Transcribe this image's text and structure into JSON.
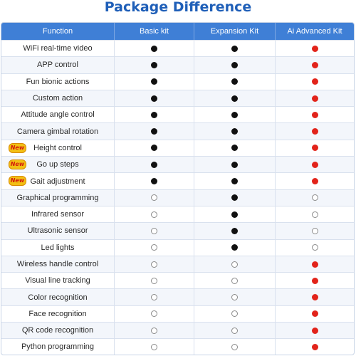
{
  "title": "Package Difference",
  "columns": [
    "Function",
    "Basic kit",
    "Expansion Kit",
    "Ai Advanced Kit"
  ],
  "new_badge": "New",
  "colors": {
    "accent": "#3f7fd6",
    "title": "#1f5fb8",
    "basic_dot": "#111111",
    "advanced_dot": "#e2231a"
  },
  "rows": [
    {
      "label": "WiFi real-time video",
      "new": false,
      "basic": "black",
      "expansion": "black",
      "advanced": "red"
    },
    {
      "label": "APP control",
      "new": false,
      "basic": "black",
      "expansion": "black",
      "advanced": "red"
    },
    {
      "label": "Fun bionic actions",
      "new": false,
      "basic": "black",
      "expansion": "black",
      "advanced": "red"
    },
    {
      "label": "Custom action",
      "new": false,
      "basic": "black",
      "expansion": "black",
      "advanced": "red"
    },
    {
      "label": "Attitude angle control",
      "new": false,
      "basic": "black",
      "expansion": "black",
      "advanced": "red"
    },
    {
      "label": "Camera gimbal rotation",
      "new": false,
      "basic": "black",
      "expansion": "black",
      "advanced": "red"
    },
    {
      "label": "Height control",
      "new": true,
      "basic": "black",
      "expansion": "black",
      "advanced": "red"
    },
    {
      "label": "Go up steps",
      "new": true,
      "basic": "black",
      "expansion": "black",
      "advanced": "red"
    },
    {
      "label": "Gait adjustment",
      "new": true,
      "basic": "black",
      "expansion": "black",
      "advanced": "red"
    },
    {
      "label": "Graphical programming",
      "new": false,
      "basic": "empty",
      "expansion": "black",
      "advanced": "empty"
    },
    {
      "label": "Infrared sensor",
      "new": false,
      "basic": "empty",
      "expansion": "black",
      "advanced": "empty"
    },
    {
      "label": "Ultrasonic sensor",
      "new": false,
      "basic": "empty",
      "expansion": "black",
      "advanced": "empty"
    },
    {
      "label": "Led lights",
      "new": false,
      "basic": "empty",
      "expansion": "black",
      "advanced": "empty"
    },
    {
      "label": "Wireless handle control",
      "new": false,
      "basic": "empty",
      "expansion": "empty",
      "advanced": "red"
    },
    {
      "label": "Visual line tracking",
      "new": false,
      "basic": "empty",
      "expansion": "empty",
      "advanced": "red"
    },
    {
      "label": "Color recognition",
      "new": false,
      "basic": "empty",
      "expansion": "empty",
      "advanced": "red"
    },
    {
      "label": "Face recognition",
      "new": false,
      "basic": "empty",
      "expansion": "empty",
      "advanced": "red"
    },
    {
      "label": "QR code recognition",
      "new": false,
      "basic": "empty",
      "expansion": "empty",
      "advanced": "red"
    },
    {
      "label": "Python programming",
      "new": false,
      "basic": "empty",
      "expansion": "empty",
      "advanced": "red"
    }
  ]
}
